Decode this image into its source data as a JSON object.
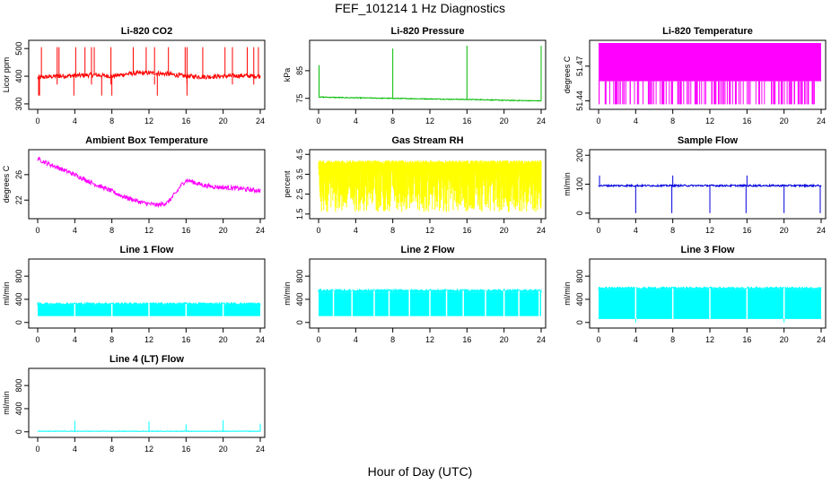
{
  "figure": {
    "title": "FEF_101214  1 Hz Diagnostics",
    "xlabel": "Hour of Day (UTC)"
  },
  "chart_data": [
    {
      "id": "co2",
      "type": "line",
      "title": "Li-820 CO2",
      "ylabel": "Licor ppm",
      "color": "#ff0000",
      "xlim": [
        0,
        24
      ],
      "ylim": [
        290,
        520
      ],
      "xticks": [
        0,
        4,
        8,
        12,
        16,
        20,
        24
      ],
      "yticks": [
        "300",
        "400",
        "500"
      ],
      "ytick_values": [
        300,
        400,
        500
      ],
      "series": [
        {
          "x": [
            0,
            2,
            4,
            6,
            8,
            10,
            12,
            14,
            16,
            18,
            20,
            22,
            24
          ],
          "values": [
            395,
            400,
            402,
            405,
            400,
            410,
            412,
            408,
            400,
            398,
            400,
            402,
            400
          ]
        }
      ],
      "spikes_up_at": [
        0.4,
        2.1,
        2.3,
        4.1,
        5.1,
        5.8,
        6.1,
        7.9,
        10.3,
        11.7,
        12.6,
        14.1,
        15.9,
        16.1,
        17.8,
        20.2,
        21.0,
        22.6,
        23.3,
        23.8
      ],
      "spike_peak": 505,
      "dips_at": [
        0.1,
        0.2,
        3.9,
        6.9,
        8.0,
        12.9,
        16.1
      ],
      "dip_value": 330
    },
    {
      "id": "pressure",
      "type": "line",
      "title": "Li-820 Pressure",
      "ylabel": "kPa",
      "color": "#00bb00",
      "xlim": [
        0,
        24
      ],
      "ylim": [
        72,
        95
      ],
      "xticks": [
        0,
        4,
        8,
        12,
        16,
        20,
        24
      ],
      "yticks": [
        "75",
        "85"
      ],
      "ytick_values": [
        75,
        85
      ],
      "series": [
        {
          "x": [
            0,
            2,
            4,
            6,
            8,
            10,
            12,
            14,
            16,
            18,
            20,
            22,
            24
          ],
          "values": [
            75.5,
            75.3,
            75.2,
            75.1,
            75.0,
            74.9,
            74.8,
            74.7,
            74.6,
            74.5,
            74.3,
            74.2,
            74.1
          ]
        }
      ],
      "spikes_up_at": [
        0.05,
        8.0,
        16.0,
        24.0
      ],
      "spike_peaks": [
        87,
        93,
        94,
        94
      ]
    },
    {
      "id": "li820_temp",
      "type": "line",
      "title": "Li-820 Temperature",
      "ylabel": "degrees C",
      "color": "#ff00ff",
      "xlim": [
        0,
        24
      ],
      "ylim": [
        51.435,
        51.49
      ],
      "xticks": [
        0,
        4,
        8,
        12,
        16,
        20,
        24
      ],
      "yticks": [
        "51.44",
        "51.47"
      ],
      "ytick_values": [
        51.44,
        51.47
      ],
      "band": [
        51.457,
        51.49
      ]
    },
    {
      "id": "box_temp",
      "type": "line",
      "title": "Ambient Box Temperature",
      "ylabel": "degrees C",
      "color": "#ff00ff",
      "xlim": [
        0,
        24
      ],
      "ylim": [
        19.5,
        29.5
      ],
      "xticks": [
        0,
        4,
        8,
        12,
        16,
        20,
        24
      ],
      "yticks": [
        "22",
        "26"
      ],
      "ytick_values": [
        22,
        26
      ],
      "series": [
        {
          "x": [
            0,
            1,
            2,
            3,
            4,
            5,
            6,
            7,
            8,
            9,
            10,
            11,
            12,
            13,
            14,
            15,
            15.5,
            16,
            16.5,
            17,
            18,
            19,
            20,
            21,
            22,
            23,
            24
          ],
          "values": [
            28.5,
            27.8,
            27.2,
            26.6,
            26.0,
            25.3,
            24.6,
            24.0,
            23.4,
            22.7,
            22.2,
            21.7,
            21.4,
            21.2,
            21.6,
            23.3,
            24.4,
            25.1,
            25.0,
            24.7,
            24.3,
            24.1,
            24.0,
            23.9,
            23.8,
            23.6,
            23.5
          ]
        }
      ],
      "noise": 0.35
    },
    {
      "id": "rh",
      "type": "line",
      "title": "Gas Stream RH",
      "ylabel": "percent",
      "color": "#ffff00",
      "xlim": [
        0,
        24
      ],
      "ylim": [
        1.4,
        4.6
      ],
      "xticks": [
        0,
        4,
        8,
        12,
        16,
        20,
        24
      ],
      "yticks": [
        "1.5",
        "2.5",
        "3.5",
        "4.5"
      ],
      "ytick_values": [
        1.5,
        2.5,
        3.5,
        4.5
      ],
      "upper": [
        4.0,
        4.2
      ],
      "lower_min": 1.6
    },
    {
      "id": "sample_flow",
      "type": "line",
      "title": "Sample Flow",
      "ylabel": "ml/min",
      "color": "#0000dd",
      "xlim": [
        0,
        24
      ],
      "ylim": [
        -10,
        210
      ],
      "xticks": [
        0,
        4,
        8,
        12,
        16,
        20,
        24
      ],
      "yticks": [
        "0",
        "100",
        "200"
      ],
      "ytick_values": [
        0,
        100,
        200
      ],
      "series": [
        {
          "x": [
            0,
            24
          ],
          "values": [
            95,
            95
          ]
        }
      ],
      "dips_at": [
        4.0,
        7.9,
        12.0,
        15.9,
        20.0,
        23.9
      ],
      "spikes_up_at": [
        0.1,
        8.0,
        16.0
      ],
      "spike_peak": 130
    },
    {
      "id": "line1",
      "type": "line",
      "title": "Line 1 Flow",
      "ylabel": "ml/min",
      "color": "#00ffff",
      "xlim": [
        0,
        24
      ],
      "ylim": [
        -50,
        1050
      ],
      "xticks": [
        0,
        4,
        8,
        12,
        16,
        20,
        24
      ],
      "yticks": [
        "0",
        "400",
        "800"
      ],
      "ytick_values": [
        0,
        400,
        800
      ],
      "band": [
        110,
        290
      ],
      "gaps_at": [
        4,
        8,
        12,
        16,
        20
      ]
    },
    {
      "id": "line2",
      "type": "line",
      "title": "Line 2 Flow",
      "ylabel": "ml/min",
      "color": "#00ffff",
      "xlim": [
        0,
        24
      ],
      "ylim": [
        -50,
        1050
      ],
      "xticks": [
        0,
        4,
        8,
        12,
        16,
        20,
        24
      ],
      "yticks": [
        "0",
        "400",
        "800"
      ],
      "ytick_values": [
        0,
        400,
        800
      ],
      "band": [
        110,
        520
      ],
      "gaps_at": [
        1.6,
        3.6,
        6.0,
        7.6,
        9.8,
        12.0,
        13.8,
        15.6,
        18.0,
        20.0,
        21.6,
        23.8
      ]
    },
    {
      "id": "line3",
      "type": "line",
      "title": "Line 3 Flow",
      "ylabel": "ml/min",
      "color": "#00ffff",
      "xlim": [
        0,
        24
      ],
      "ylim": [
        -50,
        1050
      ],
      "xticks": [
        0,
        4,
        8,
        12,
        16,
        20,
        24
      ],
      "yticks": [
        "0",
        "400",
        "800"
      ],
      "ytick_values": [
        0,
        400,
        800
      ],
      "band": [
        60,
        560
      ],
      "gaps_at": [
        4,
        8,
        12,
        16,
        20
      ]
    },
    {
      "id": "line4",
      "type": "line",
      "title": "Line 4 (LT) Flow",
      "ylabel": "ml/min",
      "color": "#00ffff",
      "xlim": [
        0,
        24
      ],
      "ylim": [
        -50,
        1050
      ],
      "xticks": [
        0,
        4,
        8,
        12,
        16,
        20,
        24
      ],
      "yticks": [
        "0",
        "400",
        "800"
      ],
      "ytick_values": [
        0,
        400,
        800
      ],
      "series": [
        {
          "x": [
            0,
            24
          ],
          "values": [
            10,
            10
          ]
        }
      ],
      "spikes_up_at": [
        4.0,
        12.0,
        16.0,
        20.0,
        24.0
      ],
      "spike_peaks": [
        190,
        180,
        130,
        200,
        140
      ]
    }
  ]
}
